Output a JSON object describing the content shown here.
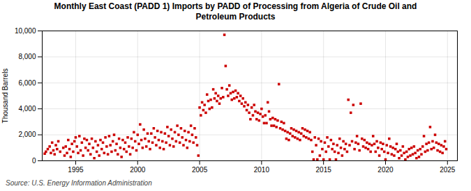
{
  "chart_data": {
    "type": "scatter",
    "title": "Monthly East Coast (PADD 1) Imports by PADD of Processing from Algeria of Crude Oil and\nPetroleum Products",
    "ylabel": "Thousand Barrels",
    "caption": "Source: U.S. Energy Information Administration",
    "color": "#cc0000",
    "marker": "square",
    "grid": true,
    "xlim": [
      1992.3,
      2025.8
    ],
    "xticks": [
      1995,
      2000,
      2005,
      2010,
      2015,
      2020,
      2025
    ],
    "ylim": [
      0,
      10000
    ],
    "yticks": [
      0,
      {
        "value": 2000,
        "label": "2,000"
      },
      {
        "value": 4000,
        "label": "4,000"
      },
      {
        "value": 6000,
        "label": "6,000"
      },
      {
        "value": 8000,
        "label": "8,000"
      },
      {
        "value": 10000,
        "label": "10,000"
      }
    ],
    "x": [
      1992.5,
      1992.6,
      1992.75,
      1992.9,
      1993.0,
      1993.1,
      1993.2,
      1993.3,
      1993.4,
      1993.5,
      1993.6,
      1993.75,
      1994.0,
      1994.1,
      1994.2,
      1994.3,
      1994.4,
      1994.5,
      1994.6,
      1994.7,
      1994.8,
      1994.9,
      1995.0,
      1995.1,
      1995.2,
      1995.3,
      1995.4,
      1995.5,
      1995.6,
      1995.7,
      1995.8,
      1995.9,
      1996.0,
      1996.1,
      1996.2,
      1996.3,
      1996.4,
      1996.5,
      1996.6,
      1996.7,
      1996.8,
      1996.9,
      1997.0,
      1997.1,
      1997.2,
      1997.3,
      1997.4,
      1997.5,
      1997.6,
      1997.7,
      1997.8,
      1997.9,
      1998.0,
      1998.1,
      1998.2,
      1998.3,
      1998.4,
      1998.5,
      1998.6,
      1998.7,
      1998.8,
      1998.9,
      1999.0,
      1999.1,
      1999.2,
      1999.3,
      1999.4,
      1999.5,
      1999.6,
      1999.7,
      1999.8,
      1999.9,
      2000.0,
      2000.1,
      2000.2,
      2000.3,
      2000.4,
      2000.5,
      2000.6,
      2000.7,
      2000.8,
      2000.9,
      2001.0,
      2001.1,
      2001.2,
      2001.3,
      2001.4,
      2001.5,
      2001.6,
      2001.7,
      2001.8,
      2001.9,
      2002.0,
      2002.1,
      2002.2,
      2002.3,
      2002.4,
      2002.5,
      2002.6,
      2002.7,
      2002.8,
      2002.9,
      2003.0,
      2003.1,
      2003.2,
      2003.3,
      2003.4,
      2003.5,
      2003.6,
      2003.7,
      2003.8,
      2003.9,
      2004.0,
      2004.1,
      2004.2,
      2004.3,
      2004.4,
      2004.5,
      2004.6,
      2004.7,
      2004.8,
      2004.9,
      2005.0,
      2005.1,
      2005.2,
      2005.3,
      2005.4,
      2005.5,
      2005.6,
      2005.7,
      2005.8,
      2005.9,
      2006.0,
      2006.1,
      2006.2,
      2006.3,
      2006.4,
      2006.5,
      2006.6,
      2006.7,
      2006.8,
      2006.9,
      2007.0,
      2007.1,
      2007.2,
      2007.3,
      2007.4,
      2007.5,
      2007.6,
      2007.7,
      2007.8,
      2007.9,
      2008.0,
      2008.1,
      2008.2,
      2008.3,
      2008.4,
      2008.5,
      2008.6,
      2008.7,
      2008.8,
      2008.9,
      2009.0,
      2009.1,
      2009.2,
      2009.3,
      2009.4,
      2009.5,
      2009.6,
      2009.7,
      2009.8,
      2009.9,
      2010.0,
      2010.1,
      2010.2,
      2010.3,
      2010.4,
      2010.5,
      2010.6,
      2010.7,
      2010.8,
      2010.9,
      2011.0,
      2011.1,
      2011.2,
      2011.3,
      2011.4,
      2011.5,
      2011.6,
      2011.7,
      2011.8,
      2011.9,
      2012.0,
      2012.1,
      2012.2,
      2012.3,
      2012.4,
      2012.5,
      2012.6,
      2012.7,
      2012.8,
      2012.9,
      2013.0,
      2013.1,
      2013.2,
      2013.3,
      2013.4,
      2013.5,
      2013.6,
      2013.7,
      2013.8,
      2013.9,
      2014.0,
      2014.1,
      2014.2,
      2014.3,
      2014.4,
      2014.5,
      2014.6,
      2014.7,
      2014.8,
      2014.9,
      2015.0,
      2015.1,
      2015.2,
      2015.3,
      2015.4,
      2015.5,
      2015.6,
      2015.7,
      2015.8,
      2015.9,
      2016.0,
      2016.1,
      2016.2,
      2016.3,
      2016.4,
      2016.5,
      2016.6,
      2016.7,
      2016.8,
      2016.9,
      2017.0,
      2017.1,
      2017.2,
      2017.3,
      2017.4,
      2017.5,
      2017.6,
      2017.7,
      2017.8,
      2017.9,
      2018.0,
      2018.1,
      2018.2,
      2018.3,
      2018.4,
      2018.5,
      2018.6,
      2018.7,
      2018.8,
      2018.9,
      2019.0,
      2019.1,
      2019.2,
      2019.3,
      2019.4,
      2019.5,
      2019.6,
      2019.7,
      2019.8,
      2019.9,
      2020.0,
      2020.1,
      2020.2,
      2020.3,
      2020.4,
      2020.5,
      2020.6,
      2020.7,
      2020.8,
      2020.9,
      2021.0,
      2021.1,
      2021.2,
      2021.3,
      2021.4,
      2021.5,
      2021.6,
      2021.7,
      2021.8,
      2021.9,
      2022.0,
      2022.1,
      2022.2,
      2022.3,
      2022.4,
      2022.5,
      2022.6,
      2022.7,
      2022.8,
      2022.9,
      2023.0,
      2023.1,
      2023.2,
      2023.3,
      2023.4,
      2023.5,
      2023.6,
      2023.7,
      2023.8,
      2023.9,
      2024.0,
      2024.1,
      2024.2,
      2024.3,
      2024.4,
      2024.5,
      2024.6,
      2024.7,
      2024.8,
      2024.9
    ],
    "values": [
      550,
      700,
      900,
      1100,
      600,
      1400,
      800,
      500,
      1200,
      900,
      1500,
      700,
      1000,
      400,
      1100,
      600,
      1600,
      900,
      300,
      1300,
      700,
      1500,
      1800,
      1100,
      600,
      1900,
      800,
      1400,
      400,
      1700,
      1000,
      1600,
      800,
      1300,
      500,
      1700,
      1000,
      200,
      1500,
      700,
      1200,
      400,
      1600,
      900,
      1400,
      600,
      1800,
      1100,
      500,
      1900,
      1200,
      700,
      1500,
      2000,
      800,
      1300,
      500,
      1700,
      1000,
      300,
      1600,
      900,
      1400,
      700,
      1800,
      1100,
      500,
      1700,
      1000,
      2200,
      1500,
      800,
      2000,
      1300,
      2800,
      1600,
      1000,
      2400,
      1700,
      1100,
      2100,
      1500,
      900,
      2100,
      1400,
      2500,
      1800,
      1200,
      2300,
      1600,
      1000,
      2200,
      1500,
      900,
      2100,
      1400,
      2600,
      1900,
      1200,
      2400,
      1700,
      1100,
      2200,
      1500,
      2700,
      2000,
      1400,
      2500,
      1800,
      1200,
      2300,
      1600,
      1000,
      2200,
      1500,
      2700,
      2000,
      1400,
      2500,
      1800,
      1200,
      400,
      4100,
      3500,
      4500,
      3900,
      4300,
      3700,
      5100,
      4600,
      4000,
      4700,
      4100,
      5500,
      4800,
      5200,
      4600,
      5000,
      4400,
      4800,
      5600,
      4900,
      9700,
      7300,
      5500,
      5000,
      5800,
      5200,
      4700,
      5300,
      4800,
      5400,
      4900,
      5200,
      4600,
      5000,
      4400,
      4800,
      4200,
      4500,
      3900,
      4300,
      3700,
      3200,
      4100,
      3500,
      4300,
      3800,
      3200,
      3700,
      3100,
      3600,
      4000,
      3400,
      2900,
      3500,
      2900,
      4500,
      3800,
      3200,
      2700,
      3300,
      2700,
      3200,
      2600,
      3100,
      5900,
      2500,
      3000,
      2400,
      2900,
      2300,
      1700,
      2200,
      1600,
      2100,
      2500,
      1900,
      2400,
      1800,
      2300,
      1700,
      2200,
      1600,
      2100,
      2500,
      1900,
      2400,
      1800,
      2300,
      1700,
      2200,
      1600,
      700,
      100,
      1800,
      1200,
      100,
      1700,
      400,
      1500,
      900,
      100,
      1400,
      700,
      1800,
      1100,
      100,
      1600,
      900,
      1300,
      700,
      100,
      1200,
      600,
      1700,
      1000,
      400,
      1500,
      900,
      1300,
      700,
      4700,
      1200,
      3700,
      1500,
      4300,
      900,
      1400,
      1900,
      1300,
      800,
      4400,
      1700,
      1100,
      1600,
      1000,
      1400,
      900,
      1300,
      700,
      1200,
      1900,
      1300,
      700,
      1500,
      1000,
      400,
      1400,
      900,
      1300,
      700,
      100,
      1200,
      600,
      1700,
      1100,
      500,
      1000,
      400,
      900,
      1300,
      700,
      200,
      800,
      400,
      1100,
      600,
      100,
      700,
      300,
      900,
      400,
      1000,
      500,
      1100,
      600,
      200,
      800,
      300,
      900,
      500,
      1100,
      1900,
      700,
      1300,
      800,
      1400,
      2600,
      900,
      1500,
      1000,
      2000,
      1400,
      800,
      1300,
      700,
      1200,
      600,
      1100,
      1500,
      900
    ]
  }
}
